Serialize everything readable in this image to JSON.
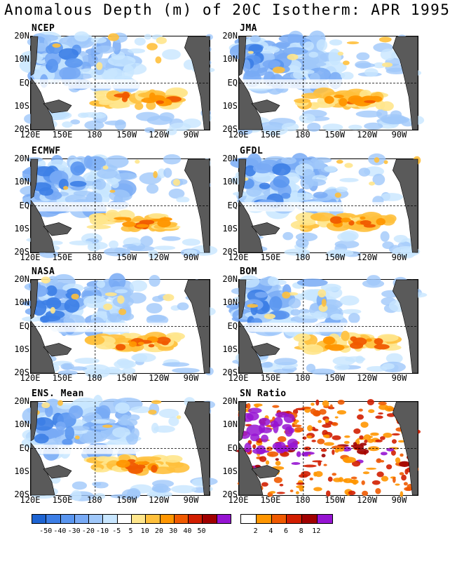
{
  "title": "Anomalous Depth (m) of 20C Isotherm: APR 1995",
  "panels": [
    {
      "name": "NCEP"
    },
    {
      "name": "JMA"
    },
    {
      "name": "ECMWF"
    },
    {
      "name": "GFDL"
    },
    {
      "name": "NASA"
    },
    {
      "name": "BOM"
    },
    {
      "name": "ENS. Mean"
    },
    {
      "name": "SN Ratio"
    }
  ],
  "lat_labels": [
    "20N",
    "10N",
    "EQ",
    "10S",
    "20S"
  ],
  "lon_labels": [
    "120E",
    "150E",
    "180",
    "150W",
    "120W",
    "90W"
  ],
  "depth_colorbar": {
    "labels": [
      "-50",
      "-40",
      "-30",
      "-20",
      "-10",
      "-5",
      "5",
      "10",
      "20",
      "30",
      "40",
      "50"
    ],
    "colors": [
      "#1e64d2",
      "#3c7ee6",
      "#5a96f0",
      "#78aaf5",
      "#a0c8fa",
      "#c8e6ff",
      "#ffffff",
      "#ffe68c",
      "#ffc03c",
      "#ff9600",
      "#f05a00",
      "#d21e00",
      "#a00000",
      "#9614d2"
    ]
  },
  "sn_colorbar": {
    "labels": [
      "2",
      "4",
      "6",
      "8",
      "12"
    ],
    "colors": [
      "#ffffff",
      "#ff9600",
      "#f05a00",
      "#d21e00",
      "#a00000",
      "#9614d2"
    ]
  }
}
